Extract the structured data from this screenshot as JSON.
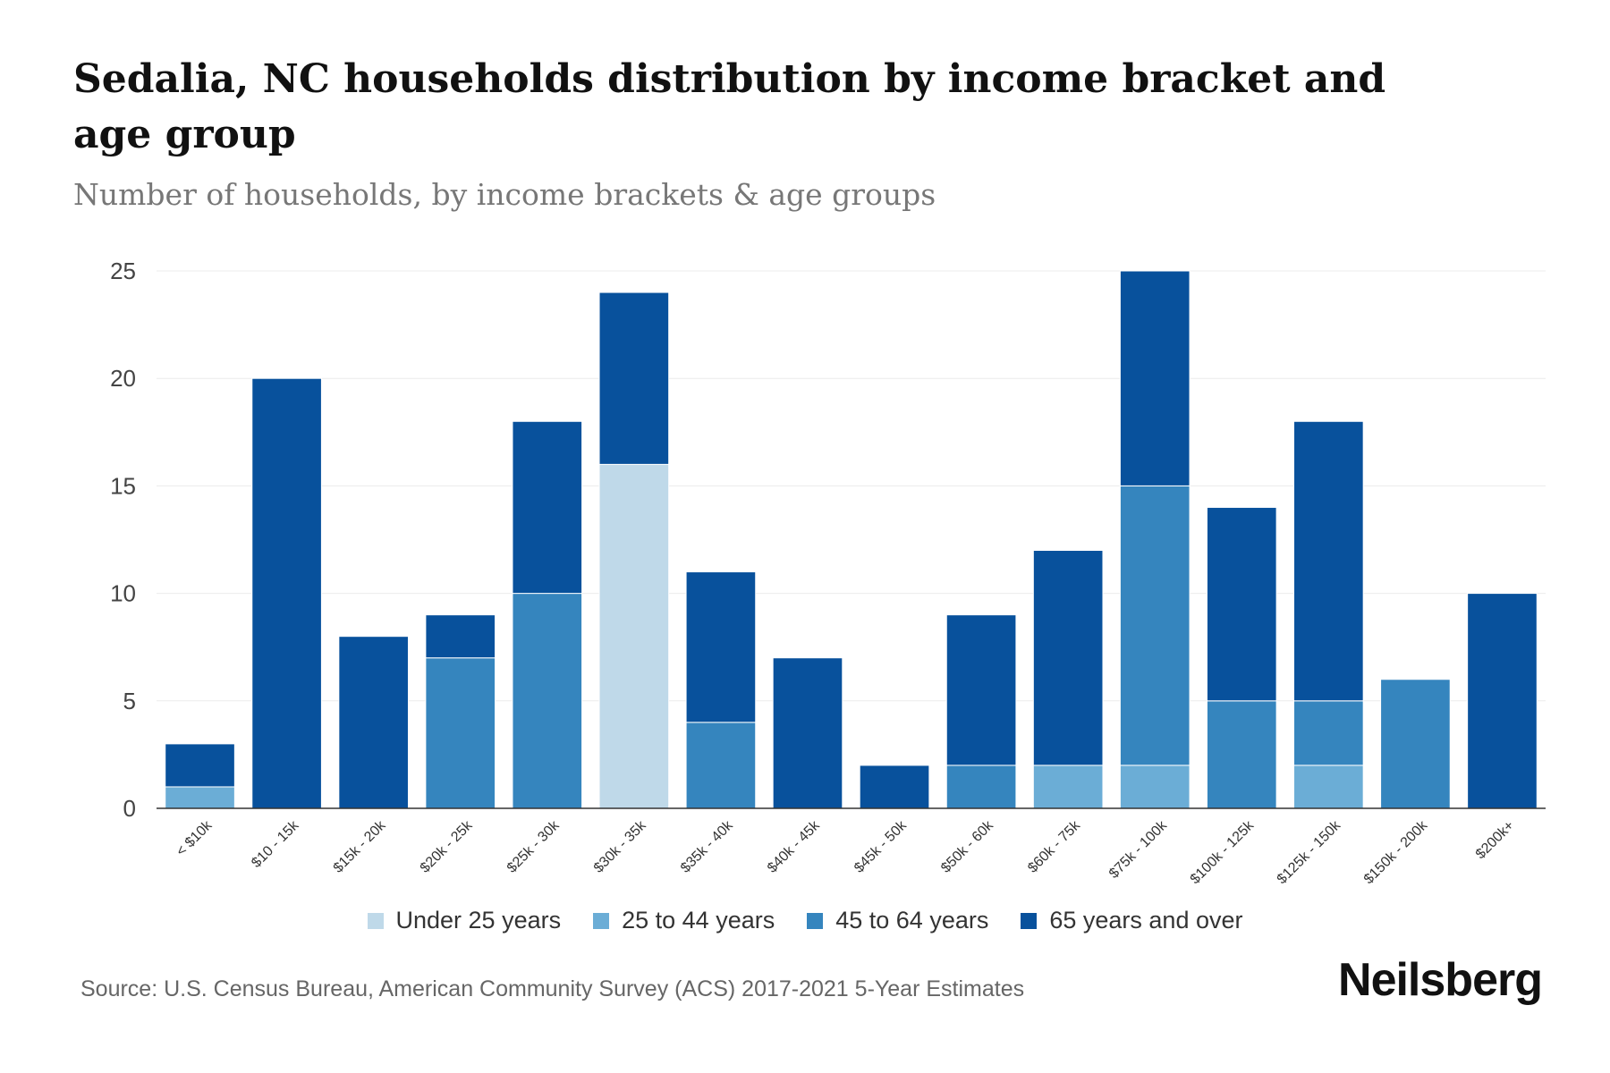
{
  "header": {
    "title": "Sedalia, NC households distribution by income bracket and age group",
    "subtitle": "Number of households, by income brackets & age groups"
  },
  "footer": {
    "source": "Source: U.S. Census Bureau, American Community Survey (ACS) 2017-2021 5-Year Estimates",
    "brand": "Neilsberg"
  },
  "chart_data": {
    "type": "bar",
    "stacked": true,
    "title": "Sedalia, NC households distribution by income bracket and age group",
    "subtitle": "Number of households, by income brackets & age groups",
    "xlabel": "",
    "ylabel": "",
    "ylim": [
      0,
      25
    ],
    "yticks": [
      0,
      5,
      10,
      15,
      20,
      25
    ],
    "grid": true,
    "legend_position": "bottom",
    "categories": [
      "< $10k",
      "$10 - 15k",
      "$15k - 20k",
      "$20k - 25k",
      "$25k - 30k",
      "$30k - 35k",
      "$35k - 40k",
      "$40k - 45k",
      "$45k - 50k",
      "$50k - 60k",
      "$60k - 75k",
      "$75k - 100k",
      "$100k - 125k",
      "$125k - 150k",
      "$150k - 200k",
      "$200k+"
    ],
    "series": [
      {
        "name": "Under 25 years",
        "color": "#bfd9e9",
        "values": [
          0,
          0,
          0,
          0,
          0,
          16,
          0,
          0,
          0,
          0,
          0,
          0,
          0,
          0,
          0,
          0
        ]
      },
      {
        "name": "25 to 44 years",
        "color": "#6badd6",
        "values": [
          1,
          0,
          0,
          0,
          0,
          0,
          0,
          0,
          0,
          0,
          2,
          2,
          0,
          2,
          0,
          0
        ]
      },
      {
        "name": "45 to 64 years",
        "color": "#3585be",
        "values": [
          0,
          0,
          0,
          7,
          10,
          0,
          4,
          0,
          0,
          2,
          0,
          13,
          5,
          3,
          6,
          0
        ]
      },
      {
        "name": "65 years and over",
        "color": "#08519c",
        "values": [
          2,
          20,
          8,
          2,
          8,
          8,
          7,
          7,
          2,
          7,
          10,
          10,
          9,
          13,
          0,
          10
        ]
      }
    ]
  }
}
